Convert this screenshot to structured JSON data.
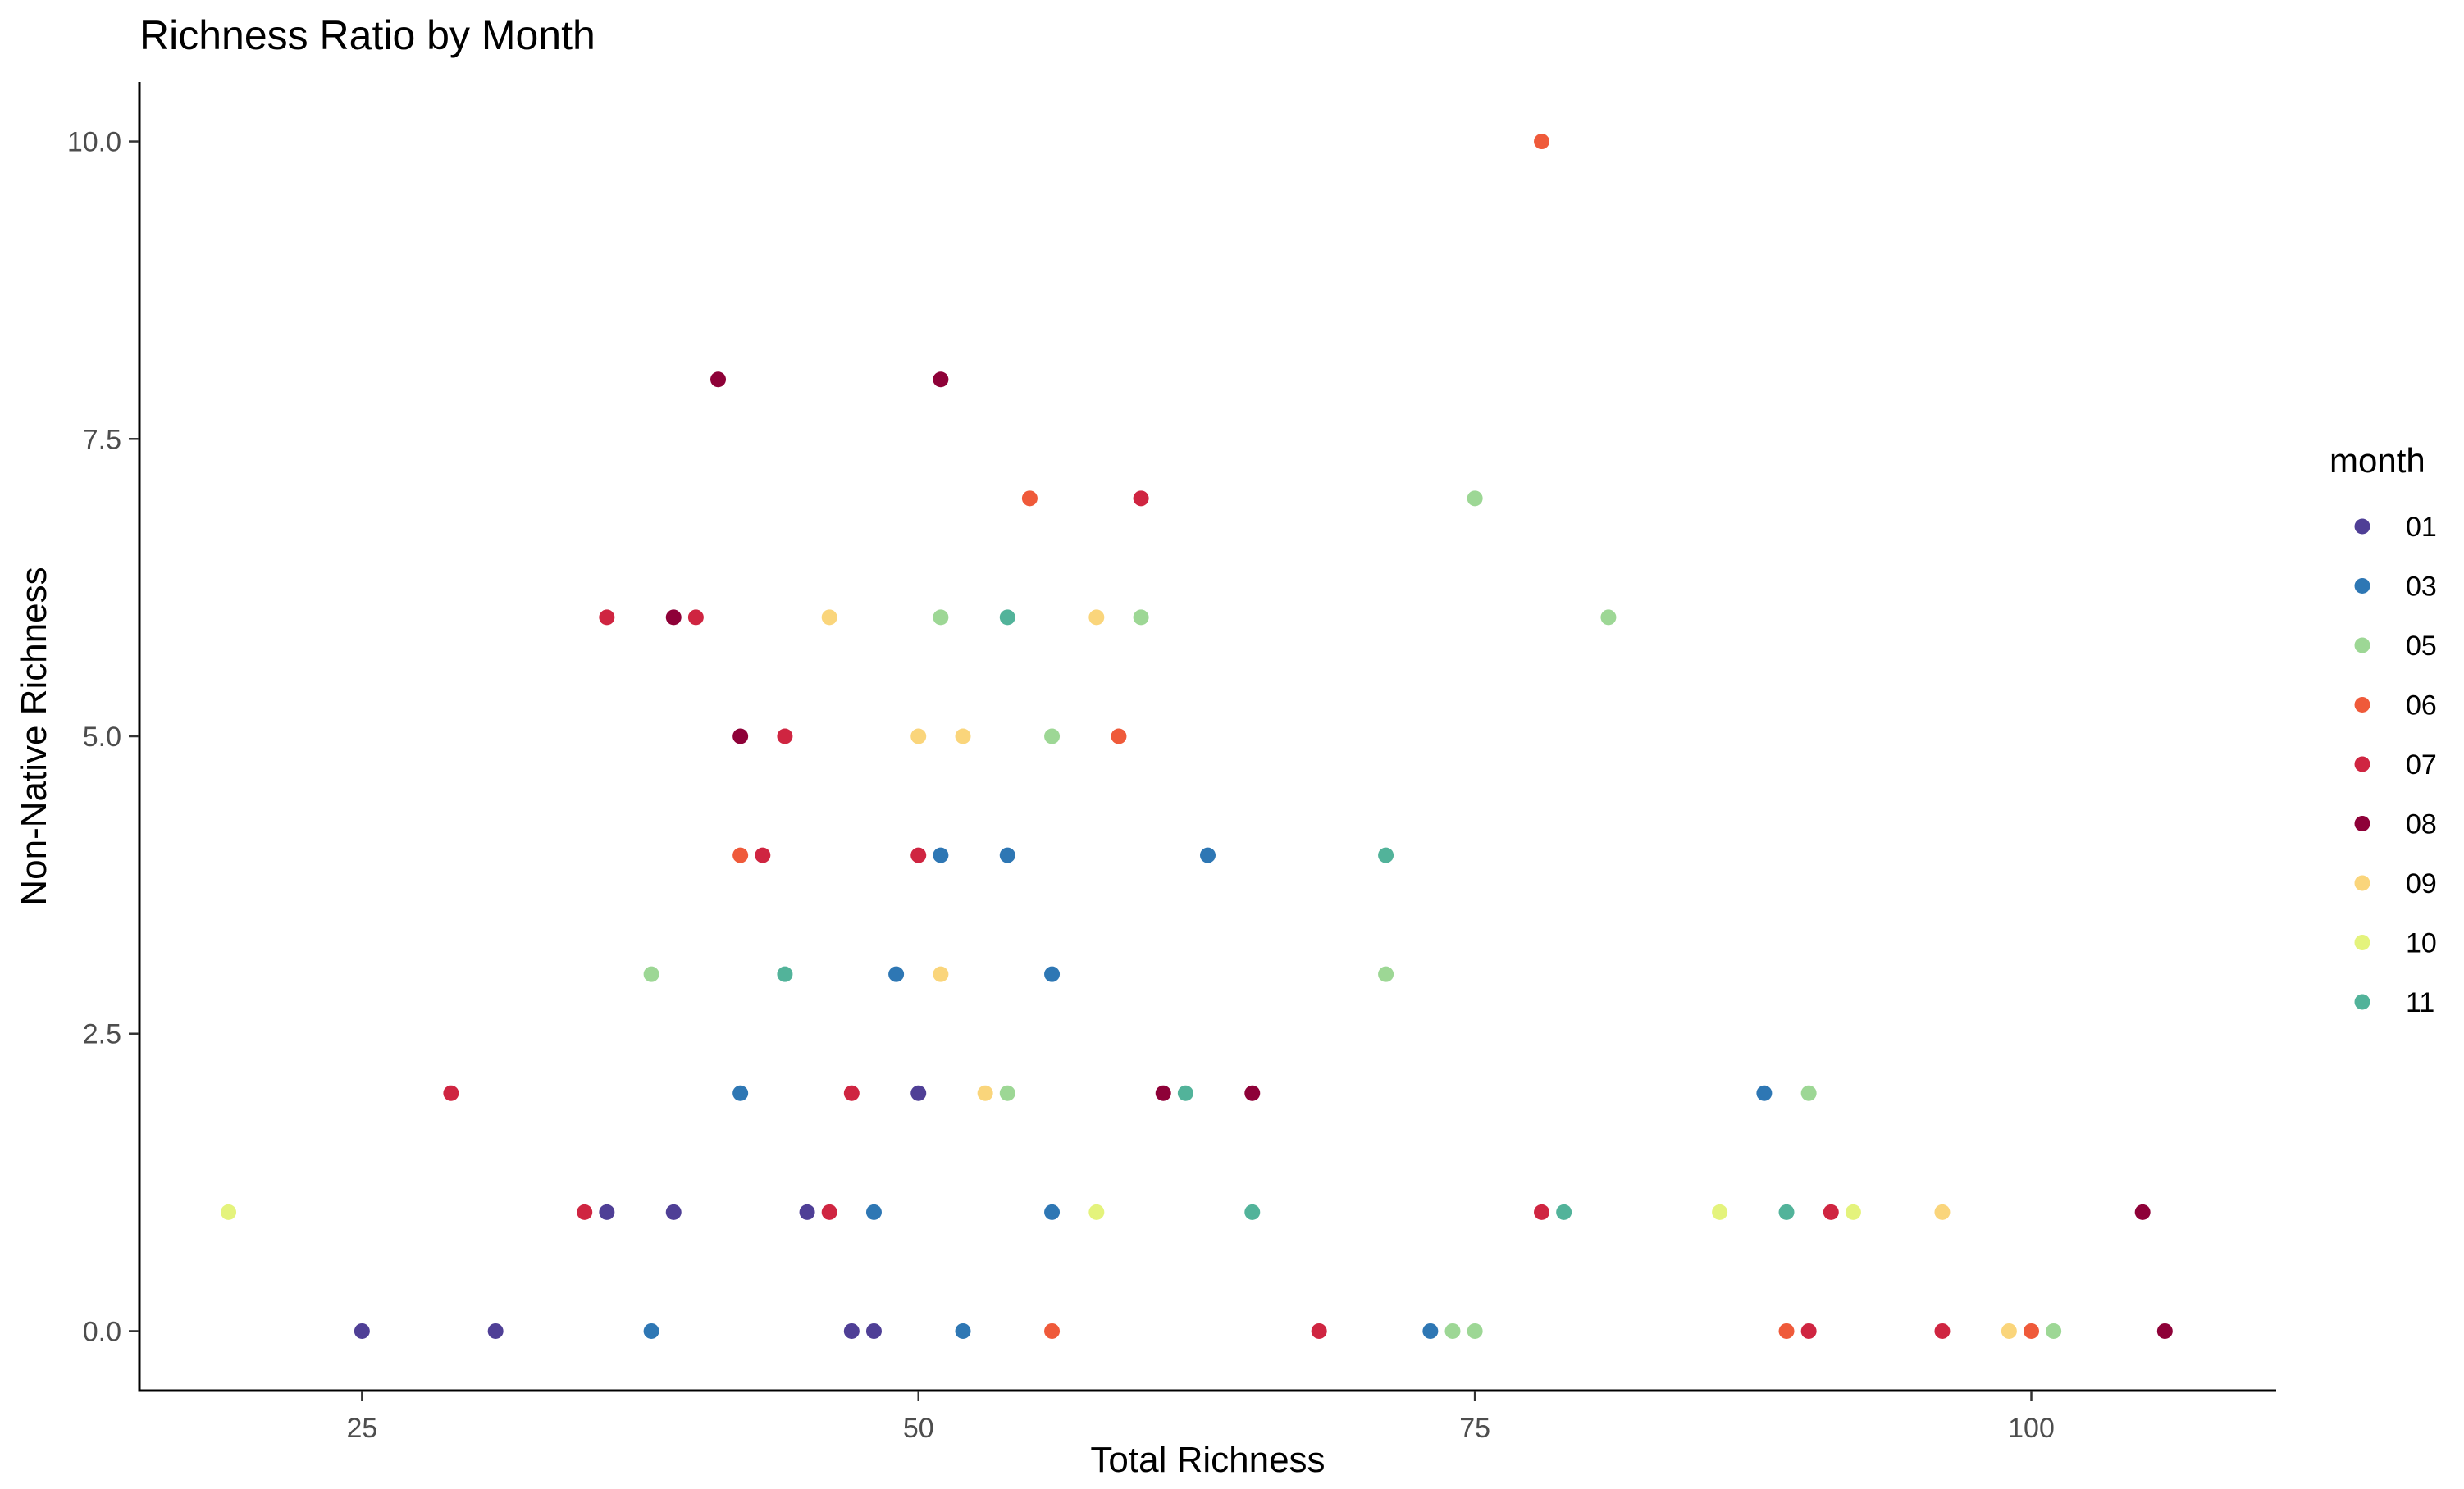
{
  "chart_data": {
    "type": "scatter",
    "title": "Richness Ratio by Month",
    "xlabel": "Total Richness",
    "ylabel": "Non-Native Richness",
    "xlim": [
      15,
      111
    ],
    "ylim": [
      -0.5,
      10.5
    ],
    "xticks": [
      25,
      50,
      75,
      100
    ],
    "xtick_labels": [
      "25",
      "50",
      "75",
      "100"
    ],
    "yticks": [
      0,
      2.5,
      5,
      7.5,
      10
    ],
    "ytick_labels": [
      "0.0",
      "2.5",
      "5.0",
      "7.5",
      "10.0"
    ],
    "grid": false,
    "legend_title": "month",
    "legend_position": "right",
    "series": [
      {
        "name": "01",
        "color": "#4f3f96",
        "points": [
          [
            25,
            0
          ],
          [
            31,
            0
          ],
          [
            36,
            1
          ],
          [
            39,
            1
          ],
          [
            45,
            1
          ],
          [
            47,
            0
          ],
          [
            48,
            0
          ],
          [
            50,
            2
          ]
        ]
      },
      {
        "name": "03",
        "color": "#2e77b4",
        "points": [
          [
            38,
            0
          ],
          [
            42,
            2
          ],
          [
            48,
            1
          ],
          [
            49,
            3
          ],
          [
            51,
            4
          ],
          [
            52,
            0
          ],
          [
            54,
            4
          ],
          [
            56,
            3
          ],
          [
            56,
            1
          ],
          [
            63,
            4
          ],
          [
            73,
            0
          ],
          [
            88,
            2
          ]
        ]
      },
      {
        "name": "05",
        "color": "#9dd795",
        "points": [
          [
            38,
            3
          ],
          [
            51,
            6
          ],
          [
            54,
            2
          ],
          [
            56,
            5
          ],
          [
            60,
            6
          ],
          [
            71,
            3
          ],
          [
            74,
            0
          ],
          [
            75,
            7
          ],
          [
            75,
            0
          ],
          [
            81,
            6
          ],
          [
            90,
            2
          ],
          [
            101,
            0
          ]
        ]
      },
      {
        "name": "06",
        "color": "#ef5a3a",
        "points": [
          [
            42,
            4
          ],
          [
            55,
            7
          ],
          [
            56,
            0
          ],
          [
            59,
            5
          ],
          [
            78,
            10
          ],
          [
            89,
            0
          ],
          [
            100,
            0
          ]
        ]
      },
      {
        "name": "07",
        "color": "#cf2541",
        "points": [
          [
            29,
            2
          ],
          [
            35,
            1
          ],
          [
            36,
            6
          ],
          [
            40,
            6
          ],
          [
            43,
            4
          ],
          [
            44,
            5
          ],
          [
            46,
            1
          ],
          [
            47,
            2
          ],
          [
            50,
            4
          ],
          [
            60,
            7
          ],
          [
            68,
            0
          ],
          [
            78,
            1
          ],
          [
            90,
            0
          ],
          [
            91,
            1
          ],
          [
            96,
            0
          ]
        ]
      },
      {
        "name": "08",
        "color": "#8e0138",
        "points": [
          [
            39,
            6
          ],
          [
            41,
            8
          ],
          [
            42,
            5
          ],
          [
            51,
            8
          ],
          [
            61,
            2
          ],
          [
            65,
            2
          ],
          [
            105,
            1
          ],
          [
            106,
            0
          ]
        ]
      },
      {
        "name": "09",
        "color": "#fad57b",
        "points": [
          [
            46,
            6
          ],
          [
            50,
            5
          ],
          [
            51,
            3
          ],
          [
            52,
            5
          ],
          [
            53,
            2
          ],
          [
            58,
            6
          ],
          [
            96,
            1
          ],
          [
            99,
            0
          ]
        ]
      },
      {
        "name": "10",
        "color": "#e4f37c",
        "points": [
          [
            19,
            1
          ],
          [
            58,
            1
          ],
          [
            86,
            1
          ],
          [
            92,
            1
          ]
        ]
      },
      {
        "name": "11",
        "color": "#52b39a",
        "points": [
          [
            44,
            3
          ],
          [
            54,
            6
          ],
          [
            62,
            2
          ],
          [
            65,
            1
          ],
          [
            71,
            4
          ],
          [
            79,
            1
          ],
          [
            89,
            1
          ]
        ]
      }
    ]
  }
}
